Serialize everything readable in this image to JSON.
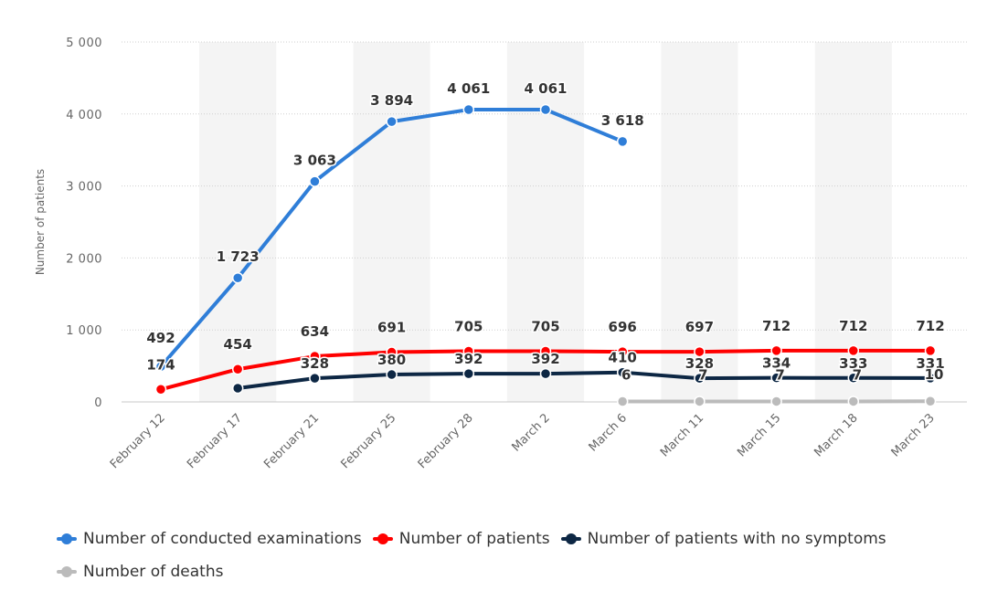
{
  "chart_data": {
    "type": "line",
    "categories": [
      "February 12",
      "February 17",
      "February 21",
      "February 25",
      "February 28",
      "March 2",
      "March 6",
      "March 11",
      "March 15",
      "March 18",
      "March 23"
    ],
    "ylabel": "Number of patients",
    "ylim": [
      0,
      5000
    ],
    "yticks": [
      0,
      1000,
      2000,
      3000,
      4000,
      5000
    ],
    "ytick_labels": [
      "0",
      "1 000",
      "2 000",
      "3 000",
      "4 000",
      "5 000"
    ],
    "grid": true,
    "legend_position": "bottom",
    "series": [
      {
        "name": "Number of conducted examinations",
        "color": "#2f7ed8",
        "values": [
          492,
          1723,
          3063,
          3894,
          4061,
          4061,
          3618,
          null,
          null,
          null,
          null
        ],
        "labels": [
          "492",
          "1 723",
          "3 063",
          "3 894",
          "4 061",
          "4 061",
          "3 618",
          "",
          "",
          "",
          ""
        ]
      },
      {
        "name": "Number of patients",
        "color": "#ff0000",
        "values": [
          174,
          454,
          634,
          691,
          705,
          705,
          696,
          697,
          712,
          712,
          712
        ],
        "labels": [
          "174",
          "454",
          "634",
          "691",
          "705",
          "705",
          "696",
          "697",
          "712",
          "712",
          "712"
        ]
      },
      {
        "name": "Number of patients with no symptoms",
        "color": "#0d2744",
        "values": [
          null,
          190,
          328,
          380,
          392,
          392,
          410,
          328,
          334,
          333,
          331
        ],
        "labels": [
          "",
          "",
          "328",
          "380",
          "392",
          "392",
          "410",
          "328",
          "334",
          "333",
          "331"
        ]
      },
      {
        "name": "Number of deaths",
        "color": "#bbbbbb",
        "values": [
          null,
          null,
          null,
          null,
          null,
          null,
          6,
          7,
          7,
          7,
          10
        ],
        "labels": [
          "",
          "",
          "",
          "",
          "",
          "",
          "6",
          "7",
          "7",
          "7",
          "10"
        ]
      }
    ]
  }
}
